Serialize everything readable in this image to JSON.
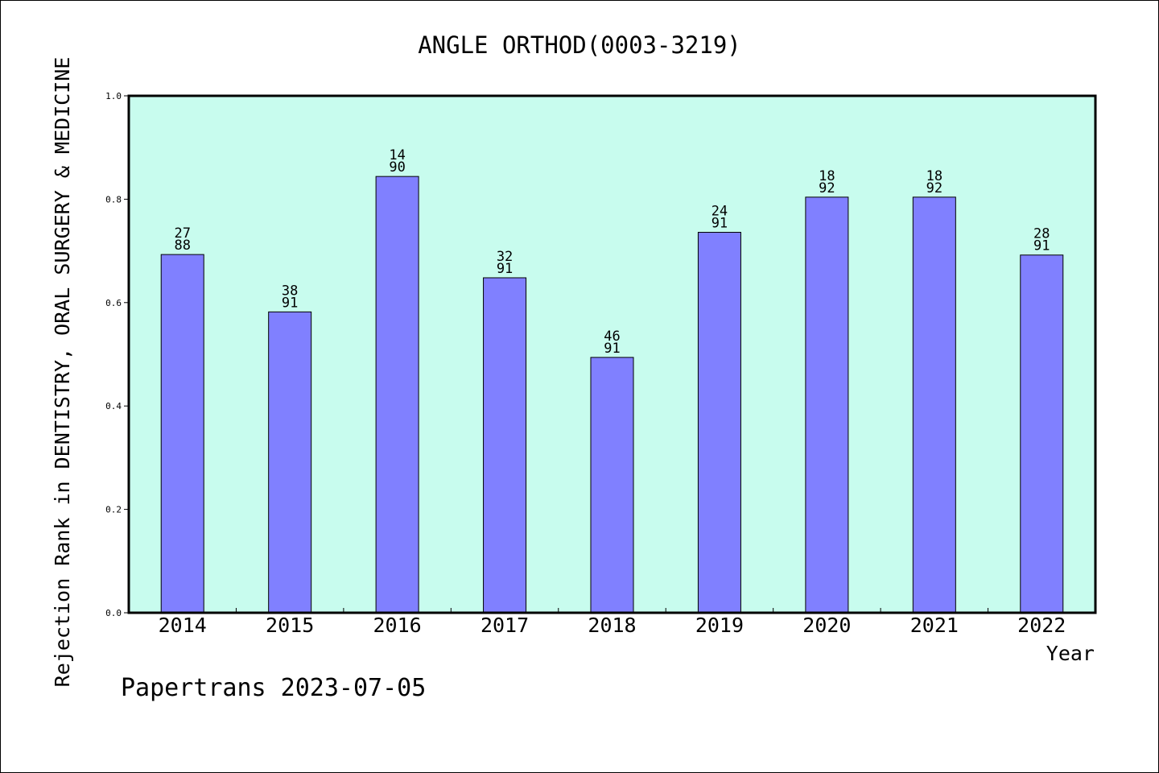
{
  "chart_data": {
    "type": "bar",
    "title": "ANGLE ORTHOD(0003-3219)",
    "ylabel": "Rejection Rank in DENTISTRY, ORAL SURGERY & MEDICINE",
    "xlabel": "Year",
    "footer": "Papertrans 2023-07-05",
    "ylim": [
      0,
      1.0
    ],
    "yticks": [
      "0.0",
      "0.2",
      "0.4",
      "0.6",
      "0.8",
      "1.0"
    ],
    "categories": [
      "2014",
      "2015",
      "2016",
      "2017",
      "2018",
      "2019",
      "2020",
      "2021",
      "2022"
    ],
    "values": [
      0.693,
      0.582,
      0.844,
      0.648,
      0.494,
      0.736,
      0.804,
      0.804,
      0.692
    ],
    "labels": [
      [
        "27",
        "88"
      ],
      [
        "38",
        "91"
      ],
      [
        "14",
        "90"
      ],
      [
        "32",
        "91"
      ],
      [
        "46",
        "91"
      ],
      [
        "24",
        "91"
      ],
      [
        "18",
        "92"
      ],
      [
        "18",
        "92"
      ],
      [
        "28",
        "91"
      ]
    ],
    "colors": {
      "plot_bg": "#c8fcee",
      "bar": "#8080ff",
      "bar_stroke": "#000000"
    },
    "grid": false
  }
}
